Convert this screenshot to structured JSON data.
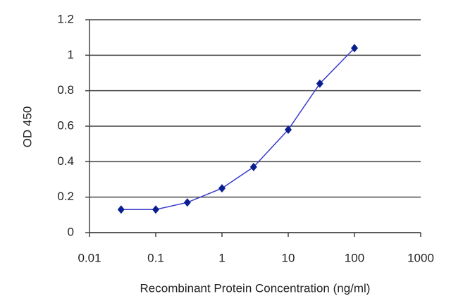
{
  "chart_data": {
    "type": "line",
    "xscale": "log",
    "x_label": "Recombinant Protein Concentration (ng/ml)",
    "y_label": "OD 450",
    "x": [
      0.03,
      0.1,
      0.3,
      1,
      3,
      10,
      30,
      100
    ],
    "series": [
      {
        "name": "OD 450",
        "color": "#3a3acc",
        "marker_color": "#0a1f8f",
        "values": [
          0.13,
          0.13,
          0.17,
          0.25,
          0.37,
          0.58,
          0.84,
          1.04
        ]
      }
    ],
    "xlim": [
      0.01,
      1000
    ],
    "xticks": [
      0.01,
      0.1,
      1,
      10,
      100,
      1000
    ],
    "ylim": [
      0,
      1.2
    ],
    "yticks": [
      0,
      0.2,
      0.4,
      0.6,
      0.8,
      1,
      1.2
    ],
    "grid": true
  }
}
